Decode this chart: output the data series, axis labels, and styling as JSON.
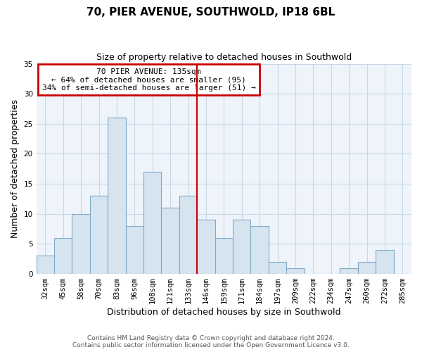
{
  "title": "70, PIER AVENUE, SOUTHWOLD, IP18 6BL",
  "subtitle": "Size of property relative to detached houses in Southwold",
  "xlabel": "Distribution of detached houses by size in Southwold",
  "ylabel": "Number of detached properties",
  "bar_labels": [
    "32sqm",
    "45sqm",
    "58sqm",
    "70sqm",
    "83sqm",
    "96sqm",
    "108sqm",
    "121sqm",
    "133sqm",
    "146sqm",
    "159sqm",
    "171sqm",
    "184sqm",
    "197sqm",
    "209sqm",
    "222sqm",
    "234sqm",
    "247sqm",
    "260sqm",
    "272sqm",
    "285sqm"
  ],
  "bar_values": [
    3,
    6,
    10,
    13,
    26,
    8,
    17,
    11,
    13,
    9,
    6,
    9,
    8,
    2,
    1,
    0,
    0,
    1,
    2,
    4,
    0
  ],
  "bar_color": "#d6e4f0",
  "bar_edge_color": "#7faac8",
  "ylim": [
    0,
    35
  ],
  "yticks": [
    0,
    5,
    10,
    15,
    20,
    25,
    30,
    35
  ],
  "vline_index": 8,
  "vline_color": "#cc0000",
  "annotation_title": "70 PIER AVENUE: 135sqm",
  "annotation_line1": "← 64% of detached houses are smaller (95)",
  "annotation_line2": "34% of semi-detached houses are larger (51) →",
  "annotation_box_color": "#cc0000",
  "footer_line1": "Contains HM Land Registry data © Crown copyright and database right 2024.",
  "footer_line2": "Contains public sector information licensed under the Open Government Licence v3.0.",
  "bg_color": "#ffffff",
  "plot_bg_color": "#eef4fa",
  "grid_color": "#c8d8e8",
  "title_fontsize": 11,
  "subtitle_fontsize": 9,
  "axis_label_fontsize": 9,
  "tick_fontsize": 7.5,
  "annotation_fontsize": 8,
  "footer_fontsize": 6.5
}
